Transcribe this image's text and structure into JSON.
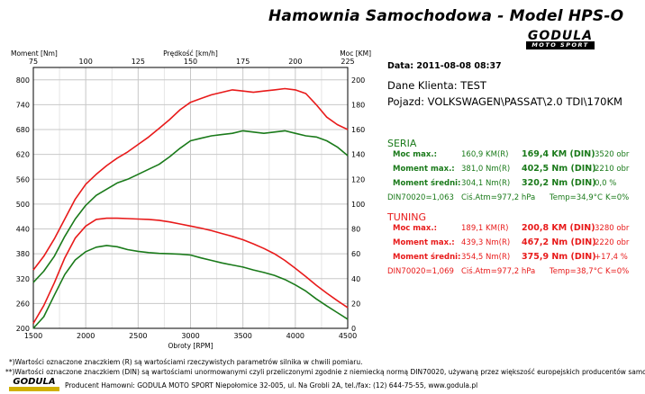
{
  "header": {
    "title": "Hamownia Samochodowa  -  Model HPS-O",
    "logo_text": "GODULA",
    "logo_sub": "MOTO SPORT"
  },
  "info": {
    "date": "Data: 2011-08-08  08:37",
    "client": "Dane Klienta: TEST",
    "vehicle": "Pojazd: VOLKSWAGEN\\PASSAT\\2.0 TDI\\170KM"
  },
  "seria": {
    "heading": "SERIA",
    "rows": [
      {
        "label": "Moc max.:",
        "r": "160,9 KM(R)",
        "din": "169,4 KM (DIN)",
        "extra": "3520 obr"
      },
      {
        "label": "Moment max.:",
        "r": "381,0 Nm(R)",
        "din": "402,5 Nm (DIN)",
        "extra": "2210 obr"
      },
      {
        "label": "Moment średni:",
        "r": "304,1 Nm(R)",
        "din": "320,2 Nm (DIN)",
        "extra": "0,0 %"
      }
    ],
    "env": {
      "din": "DIN70020=1,063",
      "atm": "Ciś.Atm=977,2 hPa",
      "temp": "Temp=34,9°C",
      "k": "K=0%"
    }
  },
  "tuning": {
    "heading": "TUNING",
    "rows": [
      {
        "label": "Moc max.:",
        "r": "189,1 KM(R)",
        "din": "200,8 KM (DIN)",
        "extra": "3280 obr"
      },
      {
        "label": "Moment max.:",
        "r": "439,3 Nm(R)",
        "din": "467,2 Nm (DIN)",
        "extra": "2220 obr"
      },
      {
        "label": "Moment średni:",
        "r": "354,5 Nm(R)",
        "din": "375,9 Nm (DIN)",
        "extra": "+17,4 %"
      }
    ],
    "env": {
      "din": "DIN70020=1,069",
      "atm": "Ciś.Atm=977,2 hPa",
      "temp": "Temp=38,7°C",
      "k": "K=0%"
    }
  },
  "footer": {
    "note1": "*)Wartości oznaczone znaczkiem (R) są wartościami rzeczywistych parametrów silnika w chwili pomiaru.",
    "note2": "**)Wartości oznaczone znaczkiem (DIN) są wartościami unormowanymi czyli przeliczonymi zgodnie z niemiecką normą DIN70020, używaną przez większość europejskich producentów samochodów.",
    "producer": "Producent Hamowni: GODULA MOTO SPORT Niepołomice 32-005, ul. Na Grobli 2A, tel./fax: (12) 644-75-55, www.godula.pl"
  },
  "colors": {
    "seria": "#1a7a1a",
    "tuning": "#e81a1a",
    "grid": "#c8c8c8"
  },
  "chart_data": {
    "type": "line",
    "title": "",
    "xlabel": "Obroty [RPM]",
    "ylabel_left": "Moment [Nm]",
    "ylabel_right": "Moc [KM]",
    "top_axis_label": "Prędkość [km/h]",
    "xlim": [
      1500,
      4500
    ],
    "ylim_left": [
      200,
      830
    ],
    "ylim_right": [
      0,
      210
    ],
    "x_ticks": [
      1500,
      2000,
      2500,
      3000,
      3500,
      4000,
      4500
    ],
    "y_left_ticks": [
      200,
      260,
      320,
      380,
      440,
      500,
      560,
      620,
      680,
      740,
      800
    ],
    "y_right_ticks": [
      0,
      20,
      40,
      60,
      80,
      100,
      120,
      140,
      160,
      180,
      200
    ],
    "top_ticks": [
      75,
      100,
      125,
      150,
      175,
      200,
      225
    ],
    "series": [
      {
        "name": "TUNING",
        "quantity": "Moc [KM]",
        "axis": "right",
        "color": "#e81a1a",
        "x": [
          1500,
          1600,
          1700,
          1800,
          1900,
          2000,
          2100,
          2200,
          2300,
          2400,
          2500,
          2600,
          2700,
          2800,
          2900,
          3000,
          3100,
          3200,
          3300,
          3400,
          3500,
          3600,
          3700,
          3800,
          3900,
          4000,
          4100,
          4200,
          4300,
          4400,
          4500
        ],
        "y": [
          47,
          58,
          72,
          88,
          104,
          116,
          124,
          131,
          137,
          142,
          148,
          154,
          161,
          168,
          176,
          182,
          185,
          188,
          190,
          192,
          191,
          190,
          191,
          192,
          193,
          192,
          189,
          180,
          170,
          164,
          160
        ]
      },
      {
        "name": "SERIA",
        "quantity": "Moc [KM]",
        "axis": "right",
        "color": "#1a7a1a",
        "x": [
          1500,
          1600,
          1700,
          1800,
          1900,
          2000,
          2100,
          2200,
          2300,
          2400,
          2500,
          2600,
          2700,
          2800,
          2900,
          3000,
          3100,
          3200,
          3300,
          3400,
          3500,
          3600,
          3700,
          3800,
          3900,
          4000,
          4100,
          4200,
          4300,
          4400,
          4500
        ],
        "y": [
          37,
          46,
          58,
          74,
          88,
          99,
          107,
          112,
          117,
          120,
          124,
          128,
          132,
          138,
          145,
          151,
          153,
          155,
          156,
          157,
          159,
          158,
          157,
          158,
          159,
          157,
          155,
          154,
          151,
          146,
          139
        ]
      },
      {
        "name": "TUNING",
        "quantity": "Moment [Nm]",
        "axis": "left",
        "color": "#e81a1a",
        "x": [
          1500,
          1600,
          1700,
          1800,
          1900,
          2000,
          2100,
          2200,
          2300,
          2400,
          2500,
          2600,
          2700,
          2800,
          2900,
          3000,
          3100,
          3200,
          3300,
          3400,
          3500,
          3600,
          3700,
          3800,
          3900,
          4000,
          4100,
          4200,
          4300,
          4400,
          4500
        ],
        "y": [
          212,
          255,
          310,
          370,
          418,
          447,
          463,
          466,
          466,
          465,
          464,
          463,
          461,
          457,
          452,
          447,
          442,
          436,
          429,
          422,
          414,
          404,
          393,
          380,
          364,
          345,
          325,
          304,
          285,
          267,
          250
        ]
      },
      {
        "name": "SERIA",
        "quantity": "Moment [Nm]",
        "axis": "left",
        "color": "#1a7a1a",
        "x": [
          1500,
          1600,
          1700,
          1800,
          1900,
          2000,
          2100,
          2200,
          2300,
          2400,
          2500,
          2600,
          2700,
          2800,
          2900,
          3000,
          3100,
          3200,
          3300,
          3400,
          3500,
          3600,
          3700,
          3800,
          3900,
          4000,
          4100,
          4200,
          4300,
          4400,
          4500
        ],
        "y": [
          200,
          228,
          280,
          330,
          365,
          385,
          396,
          400,
          397,
          390,
          386,
          383,
          381,
          380,
          379,
          377,
          370,
          364,
          358,
          353,
          348,
          341,
          335,
          328,
          318,
          305,
          290,
          271,
          254,
          238,
          222
        ]
      }
    ]
  }
}
